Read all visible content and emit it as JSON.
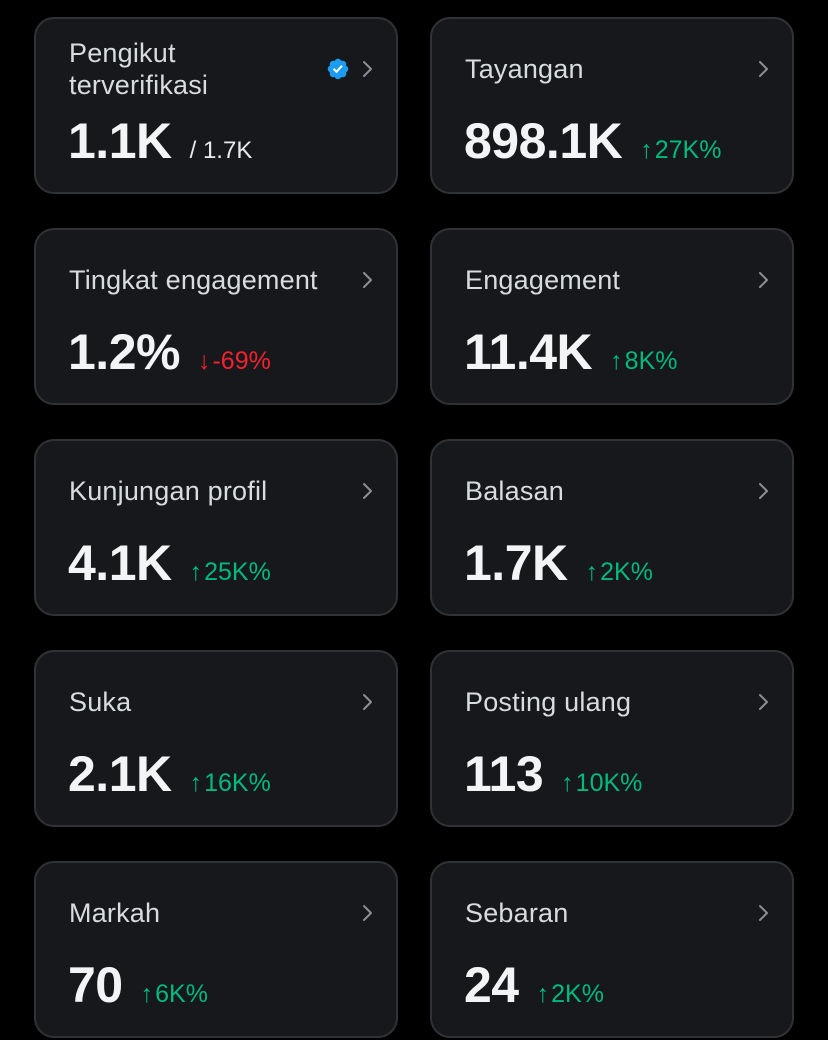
{
  "colors": {
    "background": "#000000",
    "card": "#16181c",
    "border": "#2f3336",
    "positive": "#00ba7c",
    "negative": "#f4212e",
    "verified": "#1d9bf0"
  },
  "cards": [
    {
      "title": "Pengikut terverifikasi",
      "value": "1.1K",
      "total": "/ 1.7K",
      "verified_icon": "verified-badge-icon"
    },
    {
      "title": "Tayangan",
      "value": "898.1K",
      "arrow": "↑",
      "delta": "27K%",
      "direction": "up"
    },
    {
      "title": "Tingkat engagement",
      "value": "1.2%",
      "arrow": "↓",
      "delta": "-69%",
      "direction": "down"
    },
    {
      "title": "Engagement",
      "value": "11.4K",
      "arrow": "↑",
      "delta": "8K%",
      "direction": "up"
    },
    {
      "title": "Kunjungan profil",
      "value": "4.1K",
      "arrow": "↑",
      "delta": "25K%",
      "direction": "up"
    },
    {
      "title": "Balasan",
      "value": "1.7K",
      "arrow": "↑",
      "delta": "2K%",
      "direction": "up"
    },
    {
      "title": "Suka",
      "value": "2.1K",
      "arrow": "↑",
      "delta": "16K%",
      "direction": "up"
    },
    {
      "title": "Posting ulang",
      "value": "113",
      "arrow": "↑",
      "delta": "10K%",
      "direction": "up"
    },
    {
      "title": "Markah",
      "value": "70",
      "arrow": "↑",
      "delta": "6K%",
      "direction": "up"
    },
    {
      "title": "Sebaran",
      "value": "24",
      "arrow": "↑",
      "delta": "2K%",
      "direction": "up"
    }
  ]
}
